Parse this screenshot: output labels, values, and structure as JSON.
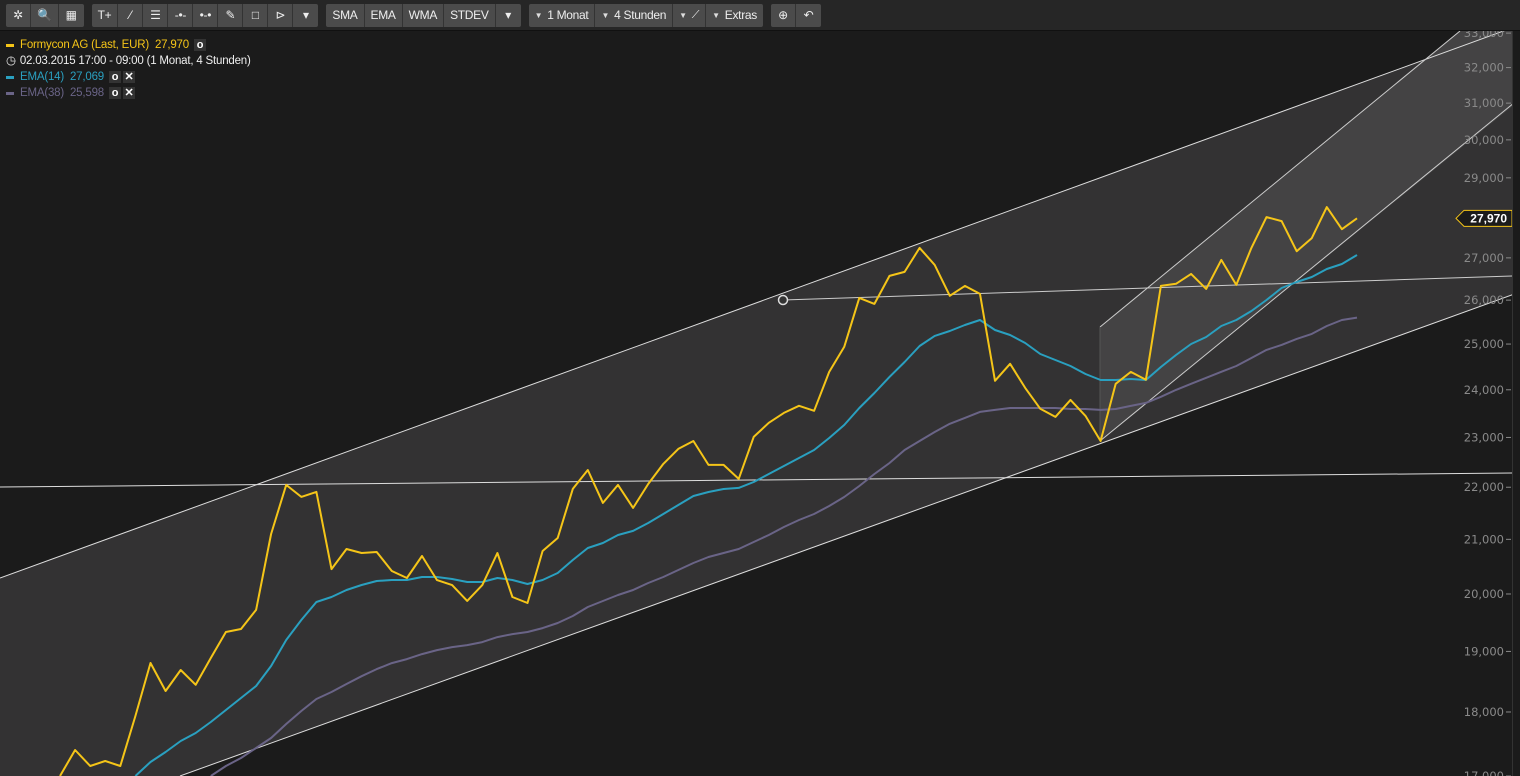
{
  "toolbar": {
    "group1": [
      {
        "icon": "settings-icon",
        "label": "✲"
      },
      {
        "icon": "search-icon",
        "label": "🔍"
      },
      {
        "icon": "grid-icon",
        "label": "▦"
      }
    ],
    "group2": [
      {
        "icon": "text-tool-icon",
        "label": "T+"
      },
      {
        "icon": "line-tool-icon",
        "label": "⁄"
      },
      {
        "icon": "fibonacci-tool-icon",
        "label": "☰"
      },
      {
        "icon": "horizontal-line-icon",
        "label": "-•-"
      },
      {
        "icon": "segment-icon",
        "label": "•-•"
      },
      {
        "icon": "pencil-icon",
        "label": "✎"
      },
      {
        "icon": "rectangle-icon",
        "label": "□"
      },
      {
        "icon": "arrow-tool-icon",
        "label": "⊳"
      },
      {
        "icon": "dropdown-icon",
        "label": "▾"
      }
    ],
    "indicators": [
      "SMA",
      "EMA",
      "WMA",
      "STDEV"
    ],
    "indicators_dropdown": "▾",
    "period": "1 Monat",
    "interval": "4 Stunden",
    "chart_type_icon": "line-chart-icon",
    "extras": "Extras",
    "zoom_icon": "zoom-in-icon",
    "undo_icon": "undo-icon"
  },
  "legend": {
    "instrument": "Formycon AG (Last, EUR)",
    "last_value": "27,970",
    "timerange": "02.03.2015 17:00 - 09:00 (1 Monat, 4 Stunden)",
    "ema14_label": "EMA(14)",
    "ema14_value": "27,069",
    "ema38_label": "EMA(38)",
    "ema38_value": "25,598"
  },
  "colors": {
    "price": "#f5c518",
    "ema14": "#2aa0c0",
    "ema38": "#6a6487",
    "background": "#1b1b1b",
    "channel_fill": "#333233",
    "channel2_fill": "#444344"
  },
  "chart_data": {
    "type": "line",
    "y_scale": "log",
    "ylim": [
      17000,
      33000
    ],
    "yticks": [
      17000,
      18000,
      19000,
      20000,
      21000,
      22000,
      23000,
      24000,
      25000,
      26000,
      27000,
      28000,
      29000,
      30000,
      31000,
      32000,
      33000
    ],
    "ytick_labels": [
      "17,000",
      "18,000",
      "19,000",
      "20,000",
      "21,000",
      "22,000",
      "23,000",
      "24,000",
      "25,000",
      "26,000",
      "27,000",
      "28,000",
      "29,000",
      "30,000",
      "31,000",
      "32,000",
      "33,000"
    ],
    "last_price_label": "27,970",
    "grid": false,
    "series": [
      {
        "name": "Formycon AG (Last, EUR)",
        "color": "#f5c518",
        "values": [
          17000,
          17399,
          17152,
          17229,
          17152,
          17936,
          18805,
          18341,
          18688,
          18442,
          18889,
          19333,
          19385,
          19717,
          21100,
          22045,
          21810,
          21908,
          20450,
          20820,
          20745,
          20764,
          20414,
          20288,
          20690,
          20250,
          20160,
          19876,
          20160,
          20745,
          19946,
          19840,
          20782,
          21025,
          21967,
          22342,
          21695,
          22045,
          21598,
          22064,
          22463,
          22766,
          22928,
          22443,
          22443,
          22164,
          23011,
          23302,
          23510,
          23659,
          23553,
          24387,
          24937,
          26053,
          25913,
          26569,
          26664,
          27241,
          26832,
          26100,
          26333,
          26146,
          24193,
          24563,
          24041,
          23595,
          23426,
          23785,
          23447,
          22928,
          24128,
          24387,
          24215,
          26333,
          26381,
          26617,
          26262,
          26952,
          26357,
          27241,
          28000,
          27900,
          27162,
          27480,
          28252,
          27700,
          27970
        ]
      },
      {
        "name": "EMA(14)",
        "color": "#2aa0c0",
        "values": [
          null,
          null,
          null,
          null,
          null,
          17000,
          17214,
          17368,
          17540,
          17666,
          17840,
          18032,
          18226,
          18423,
          18754,
          19195,
          19541,
          19858,
          19946,
          20072,
          20161,
          20233,
          20251,
          20251,
          20306,
          20306,
          20270,
          20215,
          20215,
          20288,
          20251,
          20179,
          20251,
          20379,
          20616,
          20839,
          20931,
          21082,
          21158,
          21309,
          21480,
          21654,
          21828,
          21907,
          21966,
          21986,
          22103,
          22261,
          22421,
          22581,
          22744,
          22989,
          23257,
          23613,
          23932,
          24277,
          24602,
          24956,
          25182,
          25293,
          25430,
          25542,
          25316,
          25204,
          25023,
          24779,
          24646,
          24516,
          24340,
          24211,
          24211,
          24232,
          24211,
          24494,
          24757,
          25001,
          25159,
          25407,
          25542,
          25750,
          26003,
          26283,
          26425,
          26542,
          26734,
          26852,
          27069
        ]
      },
      {
        "name": "EMA(38)",
        "color": "#6a6487",
        "values": [
          null,
          null,
          null,
          null,
          null,
          null,
          null,
          null,
          null,
          null,
          17000,
          17152,
          17275,
          17430,
          17587,
          17808,
          18016,
          18210,
          18324,
          18455,
          18585,
          18702,
          18803,
          18871,
          18954,
          19022,
          19074,
          19108,
          19159,
          19245,
          19297,
          19332,
          19400,
          19488,
          19610,
          19768,
          19875,
          19981,
          20072,
          20197,
          20306,
          20432,
          20561,
          20671,
          20745,
          20820,
          20950,
          21082,
          21232,
          21366,
          21480,
          21635,
          21809,
          22025,
          22261,
          22482,
          22744,
          22927,
          23113,
          23281,
          23405,
          23531,
          23573,
          23613,
          23613,
          23613,
          23613,
          23592,
          23592,
          23573,
          23592,
          23658,
          23721,
          23850,
          23998,
          24128,
          24259,
          24389,
          24516,
          24691,
          24870,
          24981,
          25116,
          25227,
          25407,
          25542,
          25598
        ]
      }
    ]
  }
}
